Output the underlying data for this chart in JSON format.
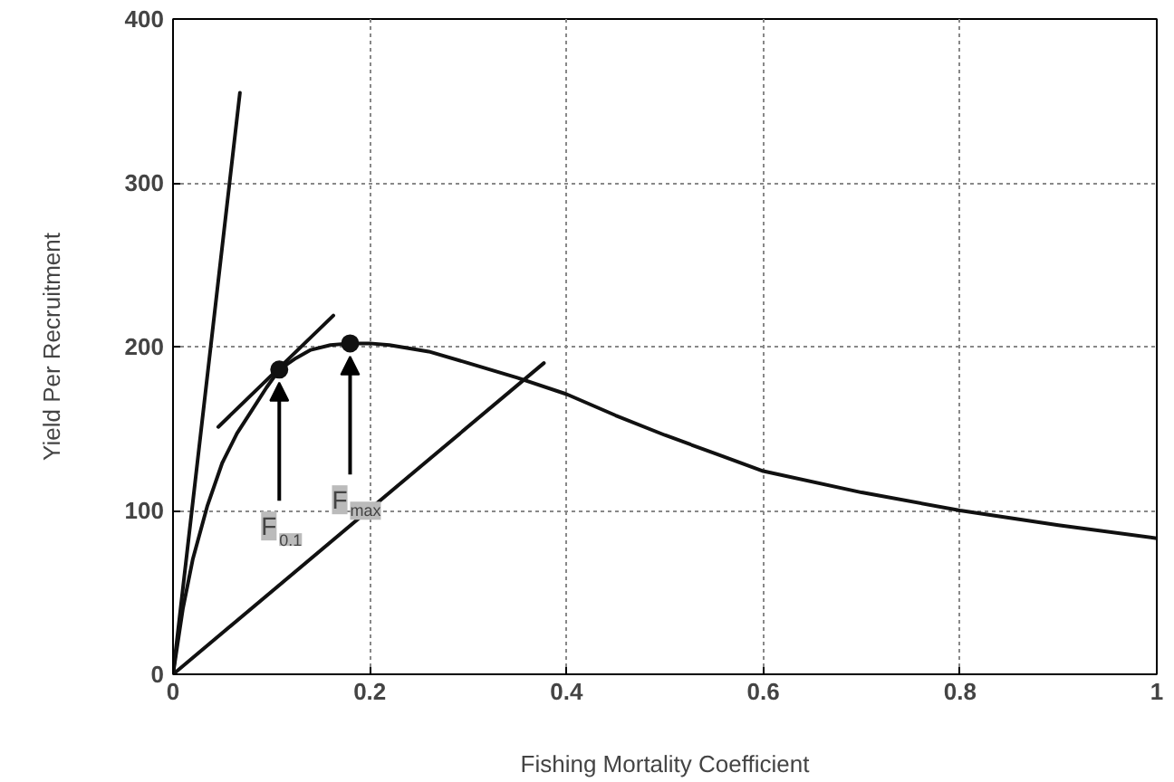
{
  "chart_data": {
    "type": "line",
    "xlabel": "Fishing Mortality Coefficient",
    "ylabel": "Yield Per Recruitment",
    "xlim": [
      0,
      1
    ],
    "ylim": [
      0,
      400
    ],
    "xticks": [
      0,
      0.2,
      0.4,
      0.6,
      0.8,
      1
    ],
    "yticks": [
      0,
      100,
      200,
      300,
      400
    ],
    "grid": true,
    "series": [
      {
        "color": "#111111",
        "x": [
          0,
          0.01,
          0.02,
          0.035,
          0.05,
          0.065,
          0.08,
          0.095,
          0.108,
          0.125,
          0.14,
          0.16,
          0.18,
          0.2,
          0.22,
          0.26,
          0.3,
          0.35,
          0.4,
          0.45,
          0.5,
          0.55,
          0.6,
          0.7,
          0.8,
          0.9,
          1
        ],
        "values": [
          0,
          40,
          70,
          103,
          129,
          147,
          161,
          175,
          186,
          193,
          198,
          201,
          202,
          202,
          201,
          197,
          190,
          181,
          171,
          158,
          146,
          135,
          124,
          111,
          100,
          91,
          83
        ]
      },
      {
        "color": "#111111",
        "x": [
          0,
          0.068
        ],
        "values": [
          0,
          355
        ]
      },
      {
        "color": "#111111",
        "x": [
          0.046,
          0.163
        ],
        "values": [
          151,
          219
        ]
      },
      {
        "color": "#111111",
        "x": [
          0,
          0.377
        ],
        "values": [
          0,
          190
        ]
      },
      {
        "type": "scatter",
        "marker": "circle",
        "color": "#111111",
        "x": [
          0.108,
          0.18
        ],
        "values": [
          186,
          202
        ]
      }
    ],
    "annotations": [
      {
        "text": "F$_{0.1}$",
        "x": 0.108,
        "y": 186
      },
      {
        "text": "F$_{max}$",
        "x": 0.18,
        "y": 202
      }
    ]
  }
}
